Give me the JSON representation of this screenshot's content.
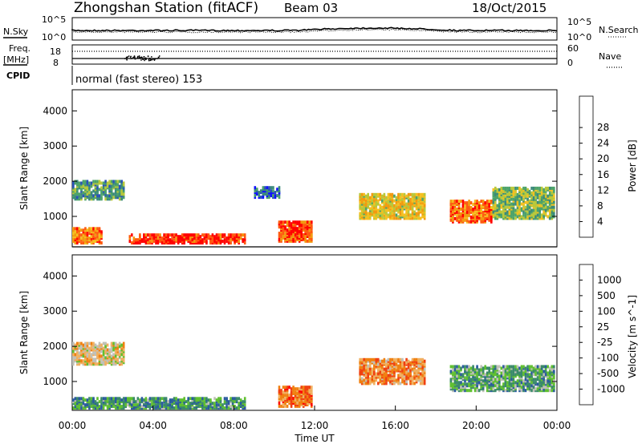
{
  "header": {
    "station": "Zhongshan Station (fitACF)",
    "beam": "Beam 03",
    "date": "18/Oct/2015"
  },
  "noise_panel": {
    "left_label": "N.Sky",
    "left_ticks": [
      "10^5",
      "10^0"
    ],
    "right_ticks": [
      "10^5",
      "10^0"
    ],
    "right_label": "N.Search"
  },
  "freq_panel": {
    "left_label_top": "Freq.",
    "left_label_bottom": "[MHz]",
    "left_ticks": [
      "18",
      "8"
    ],
    "right_ticks": [
      "60",
      "0"
    ],
    "right_label": "Nave"
  },
  "cpid": {
    "label": "CPID",
    "value": "normal (fast stereo) 153"
  },
  "x_axis": {
    "tick_labels": [
      "00:00",
      "04:00",
      "08:00",
      "12:00",
      "16:00",
      "20:00",
      "00:00"
    ],
    "label": "Time UT"
  },
  "chart_data": [
    {
      "type": "heatmap",
      "title": "",
      "ylabel": "Slant Range [km]",
      "xlabel": "",
      "y_ticks": [
        "1000",
        "2000",
        "3000",
        "4000"
      ],
      "ylim": [
        180,
        4600
      ],
      "xlim_hours": [
        0,
        24
      ],
      "colorbar": {
        "label": "Power [dB]",
        "tick_labels": [
          "4",
          "8",
          "12",
          "16",
          "20",
          "24",
          "28"
        ],
        "colors": [
          "#1010ff",
          "#2a52b8",
          "#3b8a7a",
          "#4da36a",
          "#b8c83a",
          "#f5c020",
          "#f29a10",
          "#ff5a10",
          "#ff0000"
        ]
      },
      "echo_regions": [
        {
          "t": [
            0.0,
            2.6
          ],
          "range": [
            1450,
            1950
          ],
          "level": 0.35
        },
        {
          "t": [
            0.0,
            1.5
          ],
          "range": [
            200,
            650
          ],
          "level": 0.75
        },
        {
          "t": [
            2.8,
            8.5
          ],
          "range": [
            200,
            450
          ],
          "level": 0.9
        },
        {
          "t": [
            9.0,
            10.2
          ],
          "range": [
            1500,
            1800
          ],
          "level": 0.2
        },
        {
          "t": [
            10.2,
            11.8
          ],
          "range": [
            250,
            800
          ],
          "level": 0.85
        },
        {
          "t": [
            14.2,
            17.5
          ],
          "range": [
            900,
            1600
          ],
          "level": 0.6
        },
        {
          "t": [
            18.7,
            20.8
          ],
          "range": [
            800,
            1400
          ],
          "level": 0.8
        },
        {
          "t": [
            20.8,
            23.9
          ],
          "range": [
            900,
            1800
          ],
          "level": 0.45
        }
      ]
    },
    {
      "type": "heatmap",
      "title": "",
      "ylabel": "Slant Range [km]",
      "xlabel": "Time UT",
      "y_ticks": [
        "1000",
        "2000",
        "3000",
        "4000"
      ],
      "ylim": [
        180,
        4600
      ],
      "xlim_hours": [
        0,
        24
      ],
      "colorbar": {
        "label": "Velocity [m s^-1]",
        "tick_labels": [
          "1000",
          "500",
          "100",
          "25",
          "-25",
          "-100",
          "-500",
          "-1000"
        ],
        "colors": [
          "#1c2ccf",
          "#2a5aa0",
          "#3a8a6a",
          "#60c030",
          "#c0c0b8",
          "#f0b060",
          "#f08010",
          "#f04010",
          "#ff0000"
        ]
      },
      "echo_regions": [
        {
          "t": [
            0.0,
            2.6
          ],
          "range": [
            1450,
            2050
          ],
          "level": 0.55
        },
        {
          "t": [
            0.0,
            8.5
          ],
          "range": [
            200,
            500
          ],
          "level": 0.3
        },
        {
          "t": [
            10.2,
            11.8
          ],
          "range": [
            250,
            800
          ],
          "level": 0.75
        },
        {
          "t": [
            14.2,
            17.5
          ],
          "range": [
            900,
            1600
          ],
          "level": 0.7
        },
        {
          "t": [
            18.7,
            23.9
          ],
          "range": [
            700,
            1400
          ],
          "level": 0.35
        }
      ]
    }
  ]
}
